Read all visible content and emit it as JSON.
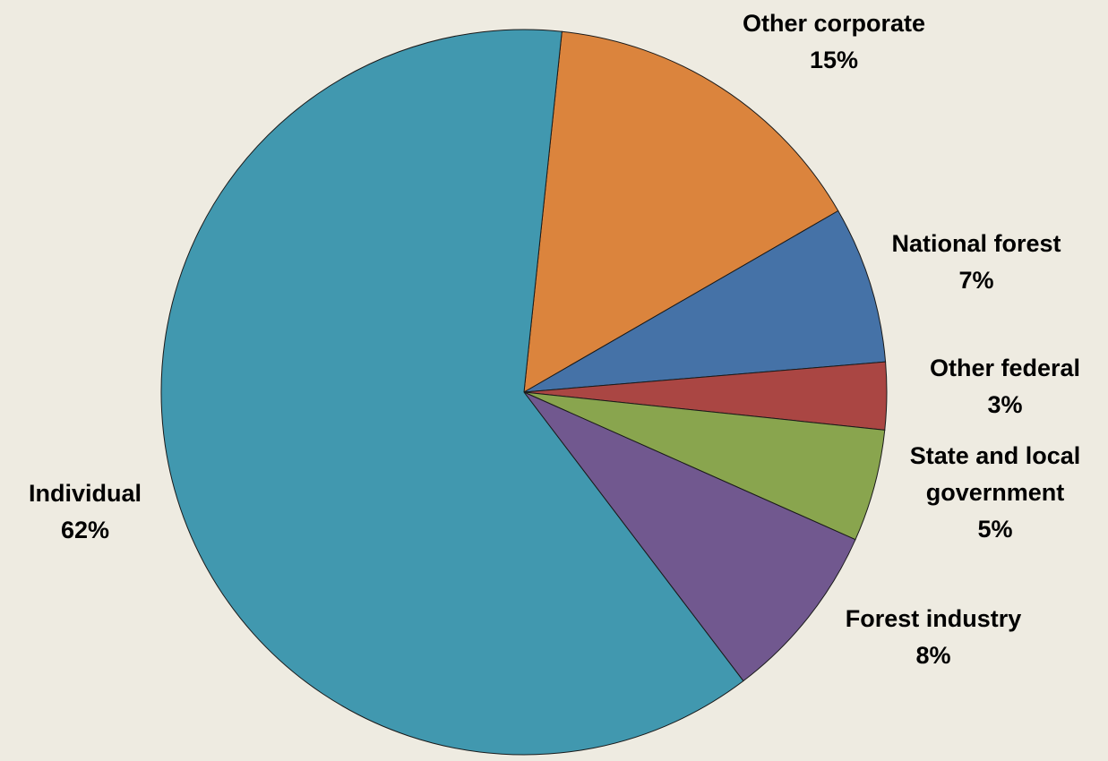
{
  "chart_data": {
    "type": "pie",
    "title": "",
    "slices": [
      {
        "label": "Other corporate",
        "value": 15,
        "value_label": "15%",
        "color": "#DB843D"
      },
      {
        "label": "National forest",
        "value": 7,
        "value_label": "7%",
        "color": "#4572A7"
      },
      {
        "label": "Other federal",
        "value": 3,
        "value_label": "3%",
        "color": "#AA4643"
      },
      {
        "label": "State and local government",
        "label_lines": [
          "State and local",
          "government"
        ],
        "value": 5,
        "value_label": "5%",
        "color": "#89A54E"
      },
      {
        "label": "Forest industry",
        "value": 8,
        "value_label": "8%",
        "color": "#71588F"
      },
      {
        "label": "Individual",
        "value": 62,
        "value_label": "62%",
        "color": "#4198AF"
      }
    ]
  }
}
